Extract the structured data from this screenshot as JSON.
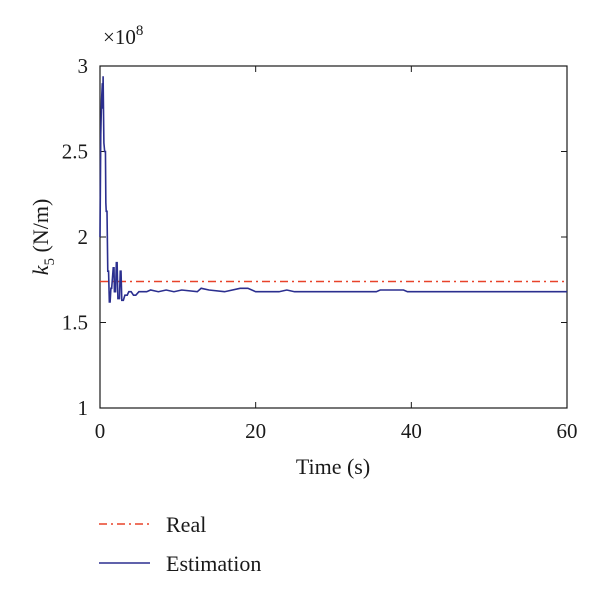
{
  "chart_data": {
    "type": "line",
    "xlabel": "Time (s)",
    "ylabel": {
      "symbol": "k",
      "subscript": "5",
      "unit": " (N/m)"
    },
    "y_multiplier": {
      "base": "×10",
      "exponent": "8"
    },
    "xlim": [
      0,
      60
    ],
    "ylim": [
      1,
      3
    ],
    "xticks": [
      0,
      20,
      40,
      60
    ],
    "yticks": [
      1,
      1.5,
      2,
      2.5,
      3
    ],
    "ytick_labels": [
      "1",
      "1.5",
      "2",
      "2.5",
      "3"
    ],
    "grid": false,
    "legend_position": "below",
    "series": [
      {
        "name": "Real",
        "color": "#e8432a",
        "style": "dashdot",
        "points": [
          [
            0,
            1.74
          ],
          [
            60,
            1.74
          ]
        ]
      },
      {
        "name": "Estimation",
        "color": "#2b2f8f",
        "style": "solid",
        "points": [
          [
            0.0,
            2.0
          ],
          [
            0.1,
            2.6
          ],
          [
            0.2,
            2.8
          ],
          [
            0.3,
            2.9
          ],
          [
            0.35,
            2.75
          ],
          [
            0.4,
            2.94
          ],
          [
            0.5,
            2.55
          ],
          [
            0.6,
            2.5
          ],
          [
            0.7,
            2.5
          ],
          [
            0.75,
            2.2
          ],
          [
            0.8,
            2.15
          ],
          [
            0.9,
            2.15
          ],
          [
            1.0,
            1.8
          ],
          [
            1.1,
            1.8
          ],
          [
            1.2,
            1.62
          ],
          [
            1.3,
            1.62
          ],
          [
            1.4,
            1.7
          ],
          [
            1.5,
            1.7
          ],
          [
            1.7,
            1.82
          ],
          [
            1.8,
            1.82
          ],
          [
            1.85,
            1.68
          ],
          [
            2.0,
            1.68
          ],
          [
            2.1,
            1.85
          ],
          [
            2.2,
            1.85
          ],
          [
            2.3,
            1.64
          ],
          [
            2.5,
            1.64
          ],
          [
            2.6,
            1.8
          ],
          [
            2.7,
            1.8
          ],
          [
            2.8,
            1.63
          ],
          [
            3.0,
            1.63
          ],
          [
            3.2,
            1.66
          ],
          [
            3.5,
            1.66
          ],
          [
            3.7,
            1.68
          ],
          [
            4.0,
            1.68
          ],
          [
            4.3,
            1.66
          ],
          [
            4.6,
            1.66
          ],
          [
            5.0,
            1.68
          ],
          [
            6.0,
            1.68
          ],
          [
            6.5,
            1.69
          ],
          [
            7.5,
            1.68
          ],
          [
            8.5,
            1.69
          ],
          [
            9.5,
            1.68
          ],
          [
            10.5,
            1.69
          ],
          [
            12.5,
            1.68
          ],
          [
            13.0,
            1.7
          ],
          [
            14.0,
            1.69
          ],
          [
            16.0,
            1.68
          ],
          [
            18.0,
            1.7
          ],
          [
            19.0,
            1.7
          ],
          [
            20.0,
            1.68
          ],
          [
            23.0,
            1.68
          ],
          [
            24.0,
            1.69
          ],
          [
            25.0,
            1.68
          ],
          [
            35.5,
            1.68
          ],
          [
            36.0,
            1.69
          ],
          [
            39.0,
            1.69
          ],
          [
            39.5,
            1.68
          ],
          [
            60.0,
            1.68
          ]
        ]
      }
    ]
  }
}
